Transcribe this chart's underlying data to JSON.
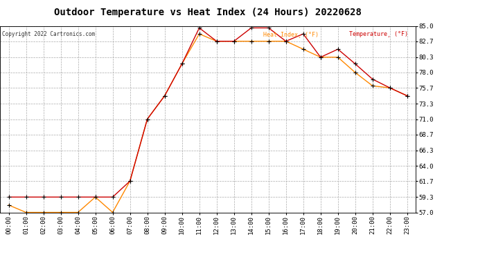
{
  "title": "Outdoor Temperature vs Heat Index (24 Hours) 20220628",
  "copyright": "Copyright 2022 Cartronics.com",
  "legend_heat": "Heat Index¸ (°F)",
  "legend_temp": "Temperature¸ (°F)",
  "hours": [
    "00:00",
    "01:00",
    "02:00",
    "03:00",
    "04:00",
    "05:00",
    "06:00",
    "07:00",
    "08:00",
    "09:00",
    "10:00",
    "11:00",
    "12:00",
    "13:00",
    "14:00",
    "15:00",
    "16:00",
    "17:00",
    "18:00",
    "19:00",
    "20:00",
    "21:00",
    "22:00",
    "23:00"
  ],
  "temperature": [
    59.3,
    59.3,
    59.3,
    59.3,
    59.3,
    59.3,
    59.3,
    61.7,
    71.0,
    74.5,
    79.3,
    84.7,
    82.7,
    82.7,
    84.7,
    84.7,
    82.7,
    83.8,
    80.3,
    81.5,
    79.3,
    77.0,
    75.7,
    74.5
  ],
  "heat_index": [
    58.1,
    57.0,
    57.0,
    57.0,
    57.0,
    59.3,
    57.0,
    61.7,
    71.0,
    74.5,
    79.3,
    83.8,
    82.7,
    82.7,
    82.7,
    82.7,
    82.7,
    81.5,
    80.3,
    80.3,
    78.0,
    76.0,
    75.7,
    74.5
  ],
  "temp_color": "#cc0000",
  "heat_color": "#ff8800",
  "marker_color": "#000000",
  "ylim_min": 57.0,
  "ylim_max": 85.0,
  "yticks": [
    57.0,
    59.3,
    61.7,
    64.0,
    66.3,
    68.7,
    71.0,
    73.3,
    75.7,
    78.0,
    80.3,
    82.7,
    85.0
  ],
  "ytick_labels": [
    "57.0",
    "59.3",
    "61.7",
    "64.0",
    "66.3",
    "68.7",
    "71.0",
    "73.3",
    "75.7",
    "78.0",
    "80.3",
    "82.7",
    "85.0"
  ],
  "background_color": "#ffffff",
  "grid_color": "#aaaaaa",
  "title_fontsize": 10,
  "tick_fontsize": 6.5
}
